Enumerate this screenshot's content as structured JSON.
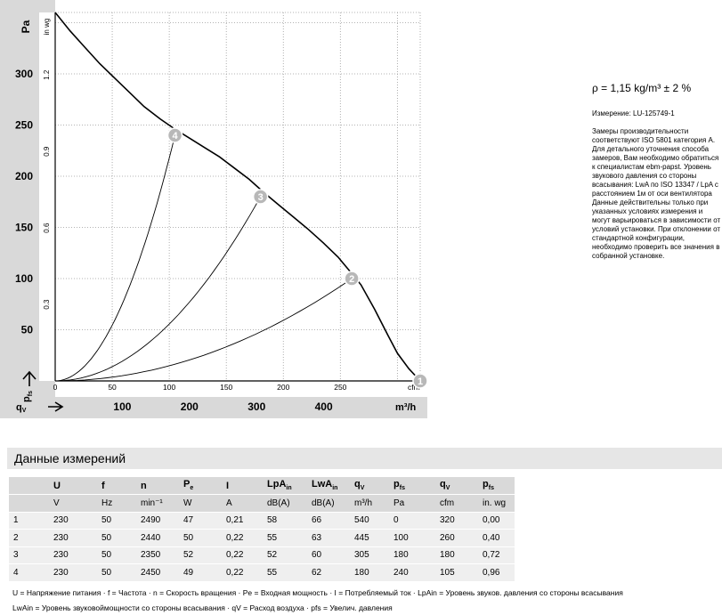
{
  "chart_data": {
    "type": "line",
    "xlabel": "qv",
    "ylabel": "pfs",
    "x_unit_primary": "m³/h",
    "x_unit_secondary": "cfm",
    "y_unit_primary": "Pa",
    "y_unit_secondary": "in wg",
    "x_ticks_cfm": [
      0,
      50,
      100,
      150,
      200,
      250
    ],
    "x_ticks_m3h": [
      100,
      200,
      300,
      400
    ],
    "y_ticks_pa": [
      50,
      100,
      150,
      200,
      250,
      300
    ],
    "y_ticks_inwg": [
      0.3,
      0.6,
      0.9,
      1.2
    ],
    "xlim_cfm": [
      0,
      320
    ],
    "ylim_pa": [
      0,
      360
    ],
    "grid": true,
    "fan_curve": {
      "x": [
        0,
        13,
        26,
        39,
        52,
        65,
        78,
        92,
        105,
        118,
        131,
        144,
        157,
        170,
        183,
        196,
        209,
        222,
        235,
        248,
        260,
        268,
        280,
        292,
        300,
        310,
        320
      ],
      "y": [
        360,
        342,
        326,
        310,
        296,
        282,
        268,
        256,
        246,
        237,
        228,
        219,
        208,
        197,
        184,
        172,
        160,
        148,
        135,
        121,
        105,
        94,
        70,
        44,
        27,
        12,
        0
      ]
    },
    "system_curves": [
      {
        "through_point": 4,
        "x": 105,
        "y": 240
      },
      {
        "through_point": 3,
        "x": 180,
        "y": 180
      },
      {
        "through_point": 2,
        "x": 260,
        "y": 100
      }
    ],
    "operating_points": [
      {
        "label": "1",
        "x": 320,
        "y": 0
      },
      {
        "label": "2",
        "x": 260,
        "y": 100
      },
      {
        "label": "3",
        "x": 180,
        "y": 180
      },
      {
        "label": "4",
        "x": 105,
        "y": 240
      }
    ]
  },
  "notes": {
    "rho": "ρ = 1,15 kg/m³ ± 2 %",
    "measurement": "Измерение: LU-125749-1",
    "paragraph": "Замеры производительности соответствуют ISO 5801 категория A. Для детального уточнения способа замеров, Вам необходимо обратиться к специалистам ebm-papst. Уровень звукового давления со стороны всасывания: LwA по ISO 13347 / LpA с расстоянием 1м от оси вентилятора Данные действительны только при указанных условиях измерения и могут варьироваться в зависимости от условий установки. При отклонении от стандартной конфигурации, необходимо проверить все значения в собранной установке."
  },
  "table": {
    "title": "Данные измерений",
    "headers": [
      {
        "main": "U",
        "sub": ""
      },
      {
        "main": "f",
        "sub": ""
      },
      {
        "main": "n",
        "sub": ""
      },
      {
        "main": "P",
        "sub": "e"
      },
      {
        "main": "I",
        "sub": ""
      },
      {
        "main": "LpA",
        "sub": "in"
      },
      {
        "main": "LwA",
        "sub": "in"
      },
      {
        "main": "q",
        "sub": "V"
      },
      {
        "main": "p",
        "sub": "fs"
      },
      {
        "main": "q",
        "sub": "V"
      },
      {
        "main": "p",
        "sub": "fs"
      }
    ],
    "units": [
      "V",
      "Hz",
      "min⁻¹",
      "W",
      "A",
      "dB(A)",
      "dB(A)",
      "m³/h",
      "Pa",
      "cfm",
      "in. wg"
    ],
    "rows": [
      [
        "1",
        "230",
        "50",
        "2490",
        "47",
        "0,21",
        "58",
        "66",
        "540",
        "0",
        "320",
        "0,00"
      ],
      [
        "2",
        "230",
        "50",
        "2440",
        "50",
        "0,22",
        "55",
        "63",
        "445",
        "100",
        "260",
        "0,40"
      ],
      [
        "3",
        "230",
        "50",
        "2350",
        "52",
        "0,22",
        "52",
        "60",
        "305",
        "180",
        "180",
        "0,72"
      ],
      [
        "4",
        "230",
        "50",
        "2450",
        "49",
        "0,22",
        "55",
        "62",
        "180",
        "240",
        "105",
        "0,96"
      ]
    ]
  },
  "legend": {
    "line1": "U = Напряжение питания · f = Частота · n = Скорость вращения · Pe = Входная мощность · I = Потребляемый ток · LpAin = Уровень звуков. давления со стороны всасывания",
    "line2": "LwAin = Уровень звуковоймощности со стороны всасывания · qV = Расход воздуха · pfs = Увелич. давления"
  },
  "colors": {
    "header_bg": "#d9d9d9",
    "row_bg": "#efefef",
    "title_bg": "#e6e6e6",
    "marker": "#b8b8b8"
  }
}
